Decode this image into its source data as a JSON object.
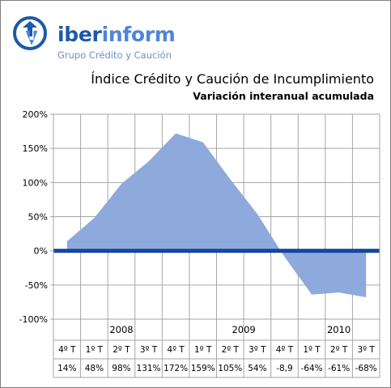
{
  "brand": {
    "name_bold": "iber",
    "name_light": "inform",
    "tagline": "Grupo Crédito y Caución",
    "logo_icon": "circular-arrows-icon",
    "colors": {
      "brand_dark": "#1d5aa8",
      "brand_light": "#4f86d6"
    }
  },
  "chart_data": {
    "type": "area",
    "title": "Índice Crédito y Caución de Incumplimiento",
    "subtitle": "Variación interanual acumulada",
    "ylim": [
      -100,
      200
    ],
    "yticks": [
      200,
      150,
      100,
      50,
      0,
      -50,
      -100
    ],
    "ytick_labels": [
      "200%",
      "150%",
      "100%",
      "50%",
      "0%",
      "-50%",
      "-100%"
    ],
    "grid": true,
    "quarters": [
      "4º T",
      "1º T",
      "2º T",
      "3º T",
      "4º T",
      "1º T",
      "2º T",
      "3º T",
      "4º T",
      "1º T",
      "2º T",
      "3º T"
    ],
    "years": [
      {
        "label": "2008",
        "quarters": 5
      },
      {
        "label": "2009",
        "quarters": 4
      },
      {
        "label": "2010",
        "quarters": 3
      }
    ],
    "values": [
      14,
      48,
      98,
      131,
      172,
      159,
      105,
      54,
      -8.9,
      -64,
      -61,
      -68
    ],
    "value_labels": [
      "14%",
      "48%",
      "98%",
      "131%",
      "172%",
      "159%",
      "105%",
      "54%",
      "-8,9",
      "-64%",
      "-61%",
      "-68%"
    ],
    "colors": {
      "area": "#8eaadc",
      "zero_line": "#17479e",
      "grid": "#a6a6a6"
    }
  }
}
